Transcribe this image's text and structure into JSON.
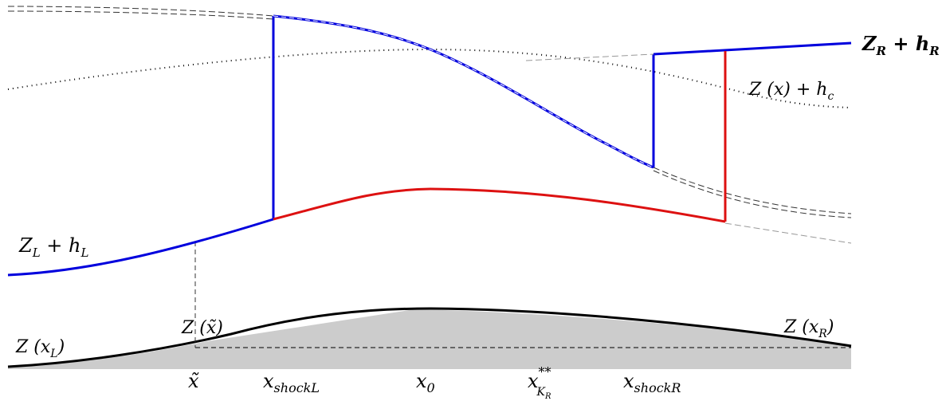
{
  "labels": {
    "zr_hr": {
      "main": "Z",
      "sub": "R",
      "rest": " + h",
      "sub2": "R"
    },
    "z_hc": {
      "main": "Z (x) + h",
      "sub": "c"
    },
    "zl_hl": {
      "main": "Z",
      "sub": "L",
      "rest": " + h",
      "sub2": "L"
    },
    "z_xl": {
      "main": "Z (x",
      "sub": "L",
      "rest": ")"
    },
    "z_xtilde": {
      "main": "Z (x̃)"
    },
    "z_xr": {
      "main": "Z (x",
      "sub": "R",
      "rest": ")"
    }
  },
  "axis_labels": {
    "x_tilde": {
      "main": "x̃"
    },
    "x_shock_l": {
      "main": "x",
      "sub": "shockL"
    },
    "x0": {
      "main": "x",
      "sub": "0"
    },
    "x_kr": {
      "main": "x",
      "sup": "**",
      "sub": "K",
      "subsub": "R"
    },
    "x_shock_r": {
      "main": "x",
      "sub": "shockR"
    }
  },
  "colors": {
    "blue": "#0000dd",
    "red": "#dd1111",
    "black": "#000000",
    "gray_fill": "#cccccc",
    "gray_line": "#999999"
  }
}
